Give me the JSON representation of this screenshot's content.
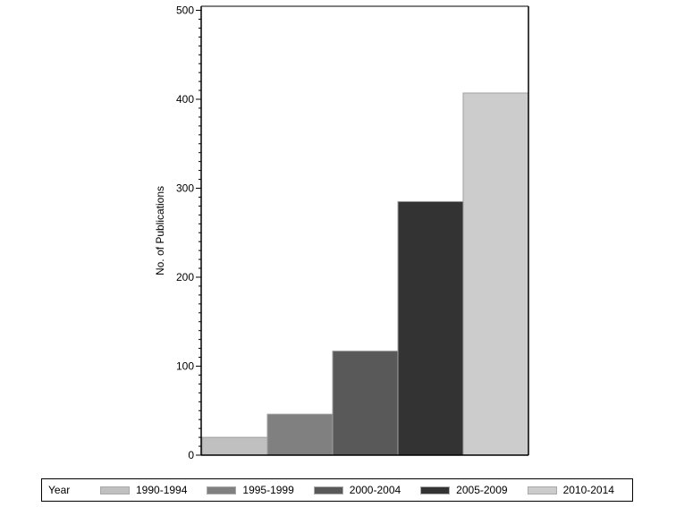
{
  "chart_data": {
    "type": "bar",
    "title": "",
    "xlabel": "",
    "ylabel": "No. of Publications",
    "ylim": [
      0,
      500
    ],
    "yticks": [
      0,
      100,
      200,
      300,
      400,
      500
    ],
    "minor_tick_step": 10,
    "grid": false,
    "legend_position": "bottom",
    "legend_title": "Year",
    "categories": [
      "1990-1994",
      "1995-1999",
      "2000-2004",
      "2005-2009",
      "2010-2014"
    ],
    "values": [
      20,
      46,
      117,
      285,
      407
    ],
    "colors": [
      "#c0c0c0",
      "#808080",
      "#595959",
      "#333333",
      "#cccccc"
    ]
  },
  "legend": {
    "title": "Year",
    "items": [
      {
        "label": "1990-1994",
        "color": "#c0c0c0"
      },
      {
        "label": "1995-1999",
        "color": "#808080"
      },
      {
        "label": "2000-2004",
        "color": "#595959"
      },
      {
        "label": "2005-2009",
        "color": "#333333"
      },
      {
        "label": "2010-2014",
        "color": "#cccccc"
      }
    ]
  }
}
